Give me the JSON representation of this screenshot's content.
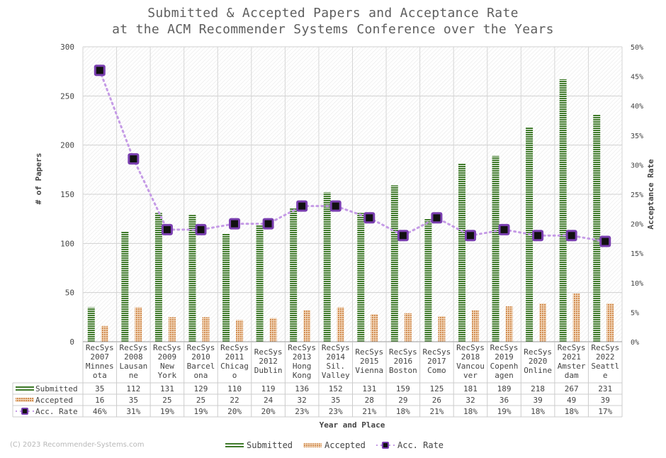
{
  "chart_data": {
    "type": "bar",
    "title": "Submitted & Accepted Papers and Acceptance Rate",
    "subtitle": "at the ACM Recommender Systems Conference over the Years",
    "xlabel": "Year and Place",
    "ylabel": "# of Papers",
    "y2label": "Acceptance Rate",
    "ylim": [
      0,
      300
    ],
    "y2lim": [
      0,
      50
    ],
    "yticks": [
      "0",
      "50",
      "100",
      "150",
      "200",
      "250",
      "300"
    ],
    "y2ticks": [
      "0%",
      "5%",
      "10%",
      "15%",
      "20%",
      "25%",
      "30%",
      "35%",
      "40%",
      "45%",
      "50%"
    ],
    "categories": [
      [
        "RecSys",
        "2007",
        "Minnes",
        "ota"
      ],
      [
        "RecSys",
        "2008",
        "Lausan",
        "ne"
      ],
      [
        "RecSys",
        "2009",
        "New",
        "York"
      ],
      [
        "RecSys",
        "2010",
        "Barcel",
        "ona"
      ],
      [
        "RecSys",
        "2011",
        "Chicag",
        "o"
      ],
      [
        "RecSys",
        "2012",
        "Dublin"
      ],
      [
        "RecSys",
        "2013",
        "Hong",
        "Kong"
      ],
      [
        "RecSys",
        "2014",
        "Sil.",
        "Valley"
      ],
      [
        "RecSys",
        "2015",
        "Vienna"
      ],
      [
        "RecSys",
        "2016",
        "Boston"
      ],
      [
        "RecSys",
        "2017",
        "Como"
      ],
      [
        "RecSys",
        "2018",
        "Vancou",
        "ver"
      ],
      [
        "RecSys",
        "2019",
        "Copenh",
        "agen"
      ],
      [
        "RecSys",
        "2020",
        "Online"
      ],
      [
        "RecSys",
        "2021",
        "Amster",
        "dam"
      ],
      [
        "RecSys",
        "2022",
        "Seattl",
        "e"
      ]
    ],
    "series": [
      {
        "name": "Submitted",
        "kind": "bar",
        "color": "#3f7a2a",
        "values": [
          35,
          112,
          131,
          129,
          110,
          119,
          136,
          152,
          131,
          159,
          125,
          181,
          189,
          218,
          267,
          231
        ],
        "labels": [
          "35",
          "112",
          "131",
          "129",
          "110",
          "119",
          "136",
          "152",
          "131",
          "159",
          "125",
          "181",
          "189",
          "218",
          "267",
          "231"
        ]
      },
      {
        "name": "Accepted",
        "kind": "bar",
        "color": "#d9a06a",
        "values": [
          16,
          35,
          25,
          25,
          22,
          24,
          32,
          35,
          28,
          29,
          26,
          32,
          36,
          39,
          49,
          39
        ],
        "labels": [
          "16",
          "35",
          "25",
          "25",
          "22",
          "24",
          "32",
          "35",
          "28",
          "29",
          "26",
          "32",
          "36",
          "39",
          "49",
          "39"
        ]
      },
      {
        "name": "Acc. Rate",
        "kind": "line",
        "axis": "right",
        "color": "#7a3fb0",
        "values": [
          46,
          31,
          19,
          19,
          20,
          20,
          23,
          23,
          21,
          18,
          21,
          18,
          19,
          18,
          18,
          17
        ],
        "labels": [
          "46%",
          "31%",
          "19%",
          "19%",
          "20%",
          "20%",
          "23%",
          "23%",
          "21%",
          "18%",
          "21%",
          "18%",
          "19%",
          "18%",
          "18%",
          "17%"
        ]
      }
    ],
    "grid": true,
    "legend": "bottom-center",
    "data_table": true
  },
  "copyright": "(C) 2023 Recommender-Systems.com"
}
